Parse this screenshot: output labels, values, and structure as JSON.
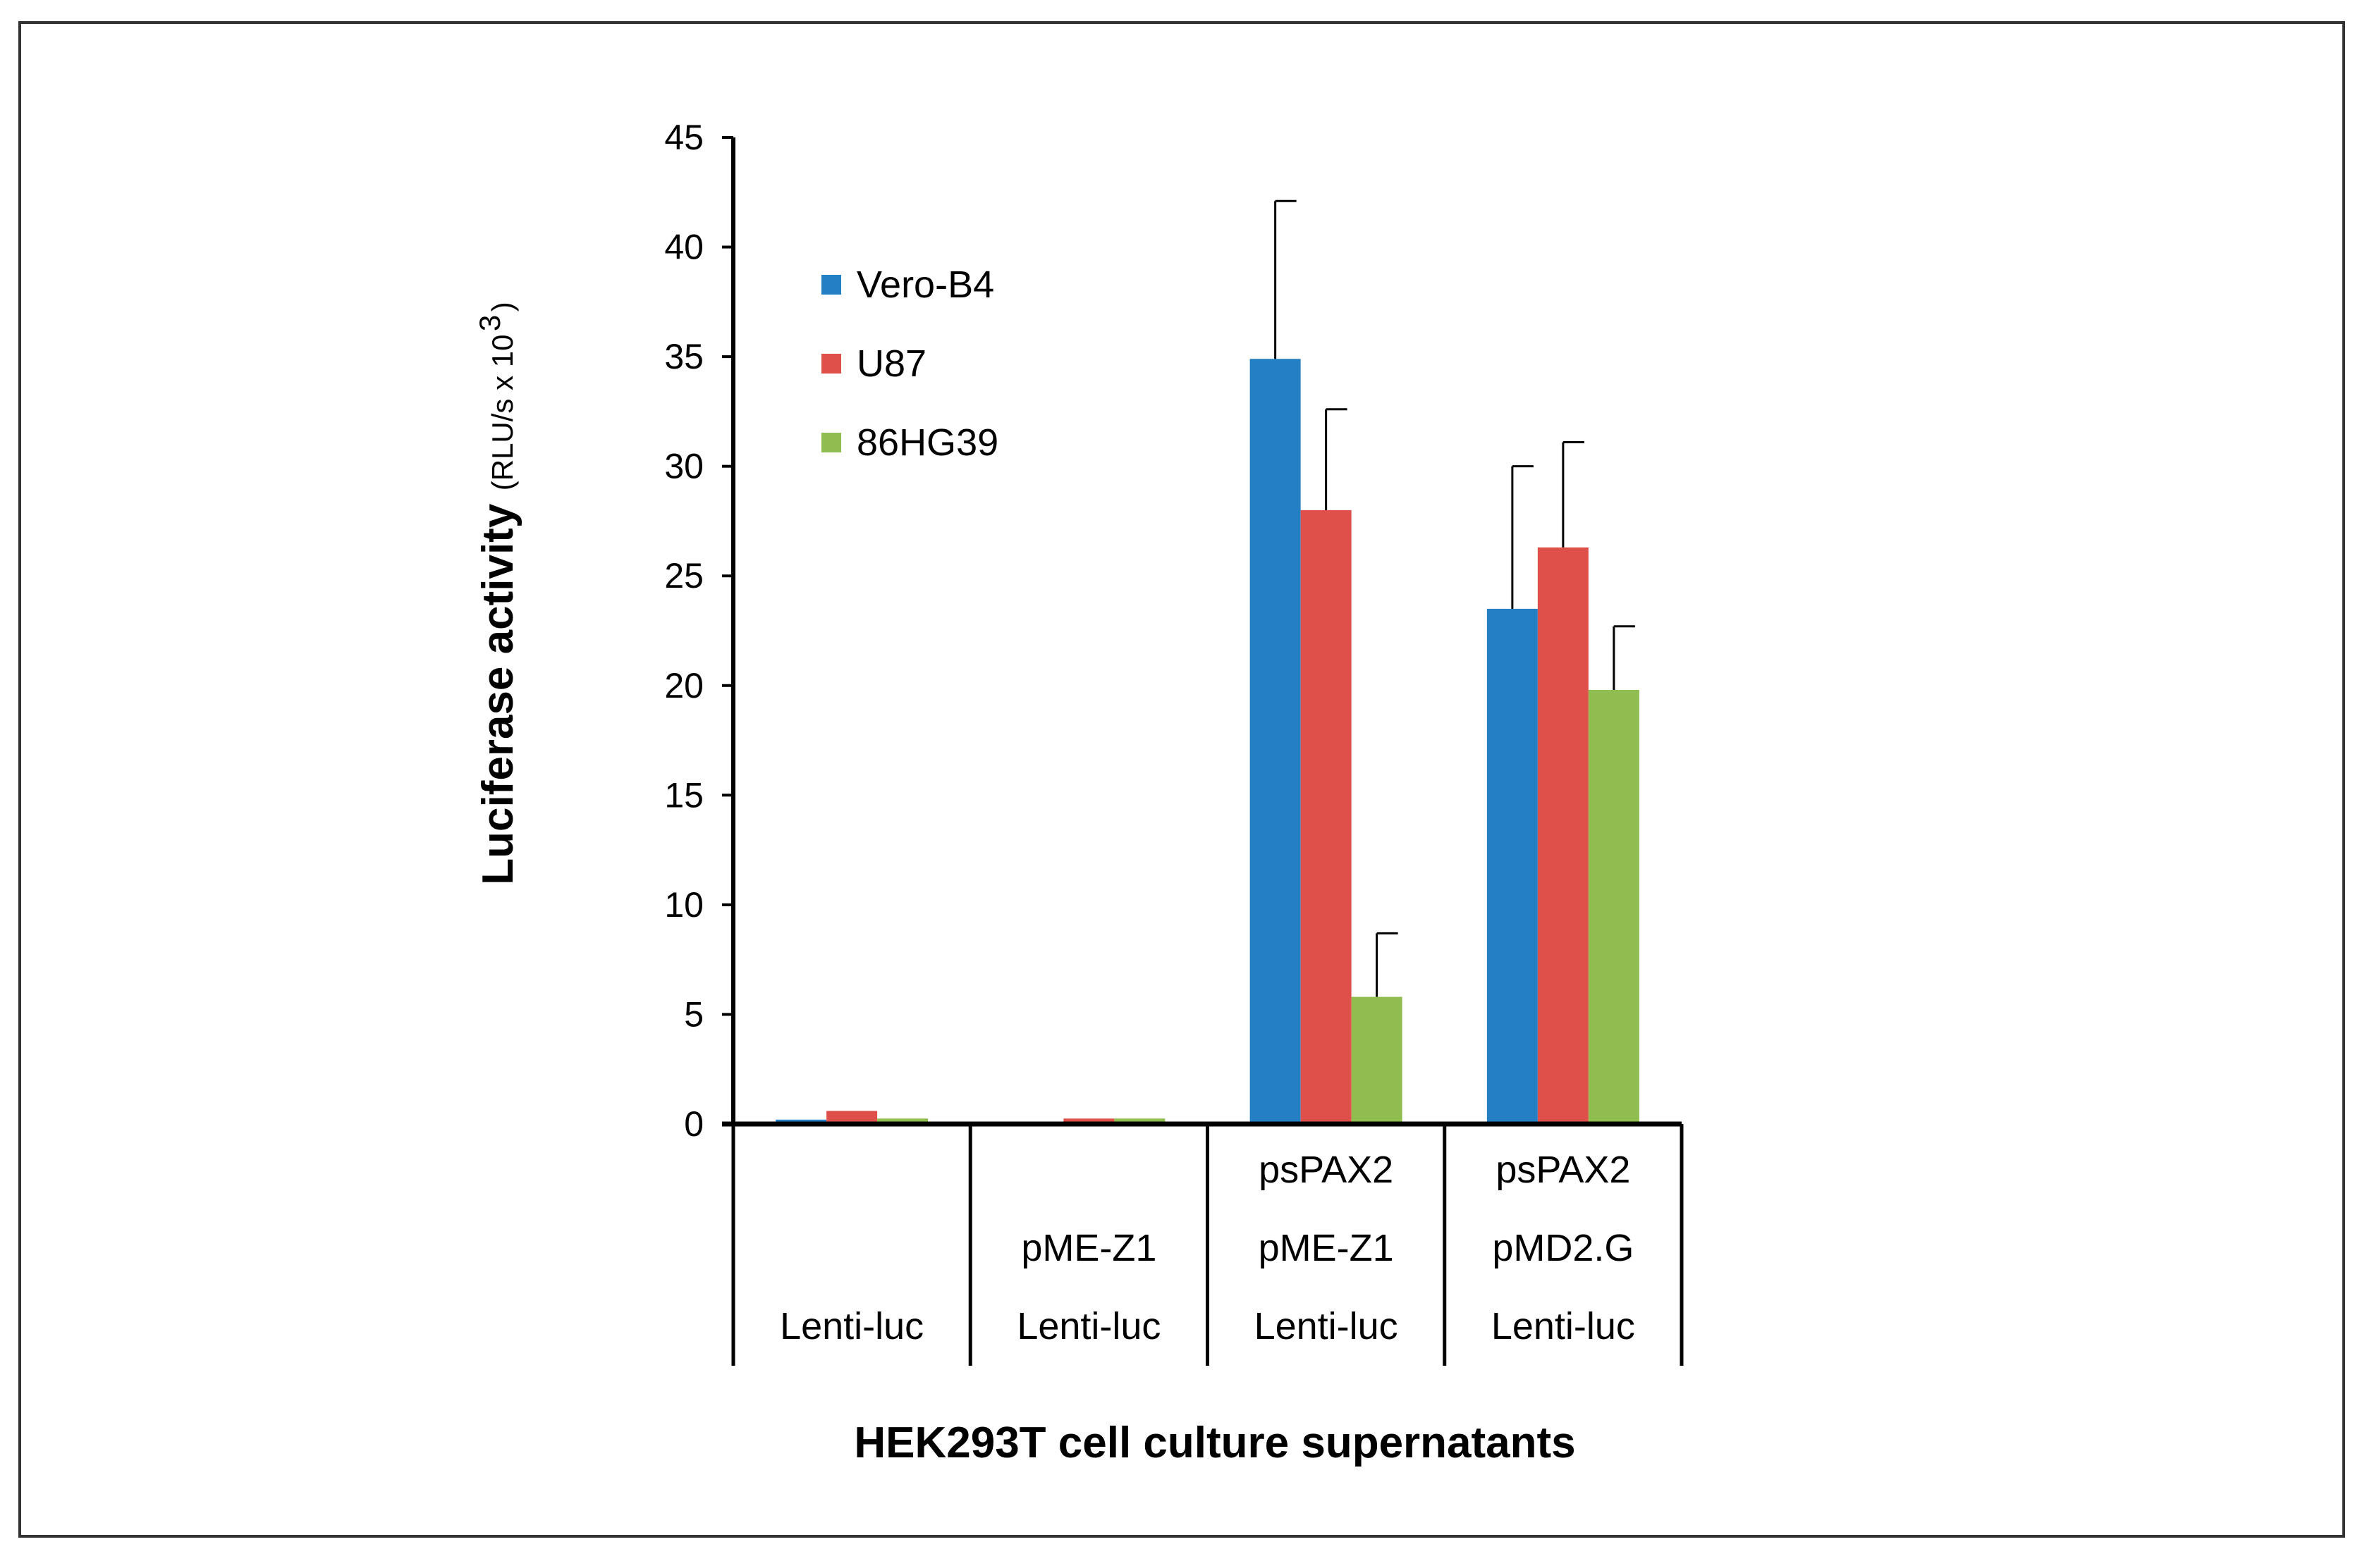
{
  "chart_data": {
    "type": "bar",
    "title": "",
    "ylabel": "Luciferase activity",
    "ylabel_unit": "(RLU/s x 10",
    "ylabel_unit_exponent": "3",
    "ylabel_unit_close": ")",
    "xlabel": "HEK293T cell culture supernatants",
    "ylim": [
      0,
      45
    ],
    "yticks": [
      0,
      5,
      10,
      15,
      20,
      25,
      30,
      35,
      40,
      45
    ],
    "grid": false,
    "legend_position": "top-left",
    "categories": [
      [
        "Lenti-luc"
      ],
      [
        "pME-Z1",
        "Lenti-luc"
      ],
      [
        "psPAX2",
        "pME-Z1",
        "Lenti-luc"
      ],
      [
        "psPAX2",
        "pMD2.G",
        "Lenti-luc"
      ]
    ],
    "series": [
      {
        "name": "Vero-B4",
        "color": "#2580c3",
        "values": [
          0.2,
          0.0,
          34.9,
          23.5
        ],
        "errors": [
          null,
          null,
          7.2,
          6.5
        ]
      },
      {
        "name": "U87",
        "color": "#e0504b",
        "values": [
          0.6,
          0.25,
          28.0,
          26.3
        ],
        "errors": [
          null,
          null,
          4.6,
          4.8
        ]
      },
      {
        "name": "86HG39",
        "color": "#8fbd50",
        "values": [
          0.25,
          0.25,
          5.8,
          19.8
        ],
        "errors": [
          null,
          null,
          2.9,
          2.9
        ]
      }
    ]
  }
}
